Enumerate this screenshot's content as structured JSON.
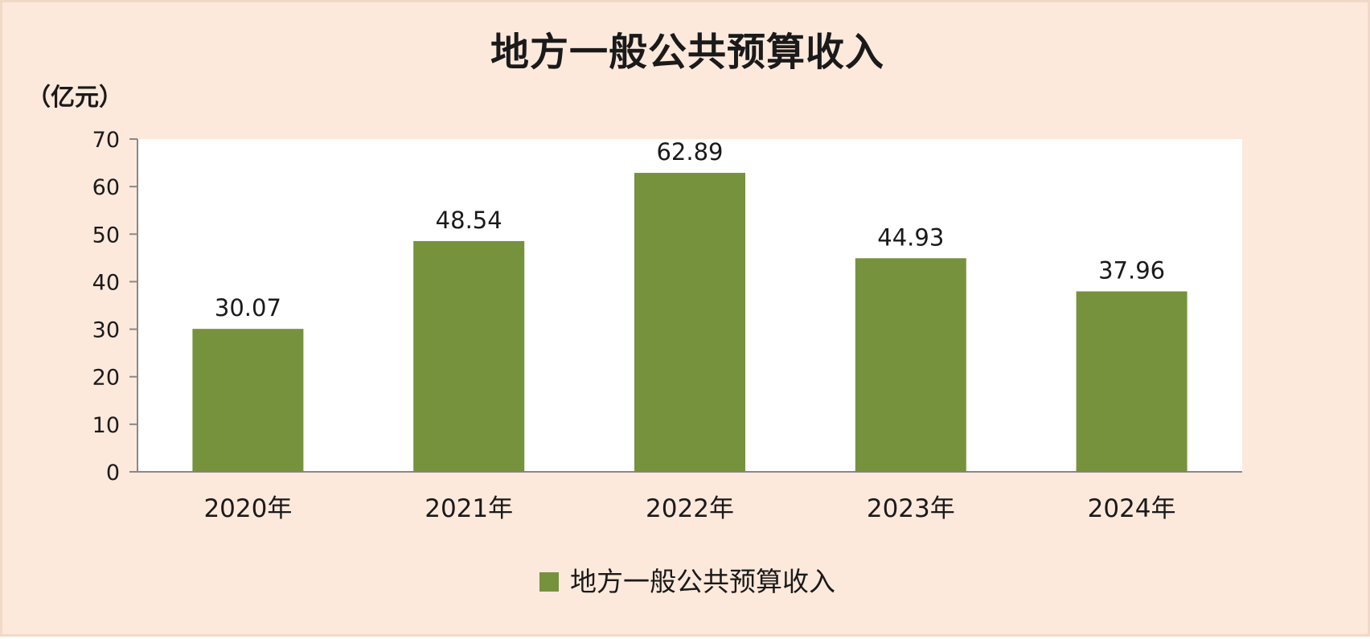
{
  "chart_data": {
    "type": "bar",
    "title": "地方一般公共预算收入",
    "unit_label": "（亿元）",
    "categories": [
      "2020年",
      "2021年",
      "2022年",
      "2023年",
      "2024年"
    ],
    "series": [
      {
        "name": "地方一般公共预算收入",
        "color": "#76923c",
        "values": [
          30.07,
          48.54,
          62.89,
          44.93,
          37.96
        ]
      }
    ],
    "data_labels": [
      "30.07",
      "48.54",
      "62.89",
      "44.93",
      "37.96"
    ],
    "ylim": [
      0,
      70
    ],
    "yticks": [
      0,
      10,
      20,
      30,
      40,
      50,
      60,
      70
    ],
    "grid": false,
    "legend_position": "bottom",
    "plot_background": "#ffffff",
    "page_background": "#fde9dc"
  }
}
